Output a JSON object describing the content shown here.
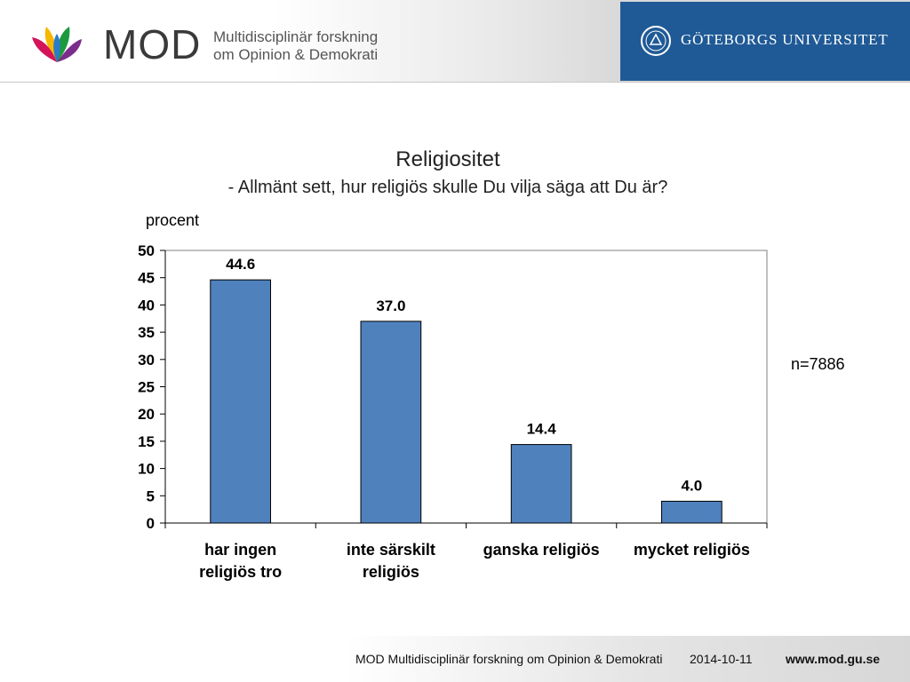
{
  "header": {
    "logo_word": "MOD",
    "logo_tagline_1": "Multidisciplinär forskning",
    "logo_tagline_2": "om Opinion & Demokrati",
    "university": "GÖTEBORGS UNIVERSITET"
  },
  "sample_note": "n=7886",
  "chart_data": {
    "type": "bar",
    "title": "Religiositet",
    "subtitle": "- Allmänt sett, hur religiös skulle Du vilja säga att Du är?",
    "ylabel": "procent",
    "xlabel": "",
    "categories": [
      [
        "har ingen",
        "religiös tro"
      ],
      [
        "inte särskilt",
        "religiös"
      ],
      [
        "ganska religiös"
      ],
      [
        "mycket religiös"
      ]
    ],
    "values": [
      44.6,
      37.0,
      14.4,
      4.0
    ],
    "data_labels": [
      "44.6",
      "37.0",
      "14.4",
      "4.0"
    ],
    "ylim": [
      0,
      50
    ],
    "yticks": [
      0,
      5,
      10,
      15,
      20,
      25,
      30,
      35,
      40,
      45,
      50
    ],
    "grid": false,
    "legend": "none",
    "bar_color": "#4f81bd"
  },
  "footer": {
    "org": "MOD Multidisciplinär forskning om Opinion & Demokrati",
    "date": "2014-10-11",
    "url": "www.mod.gu.se"
  }
}
